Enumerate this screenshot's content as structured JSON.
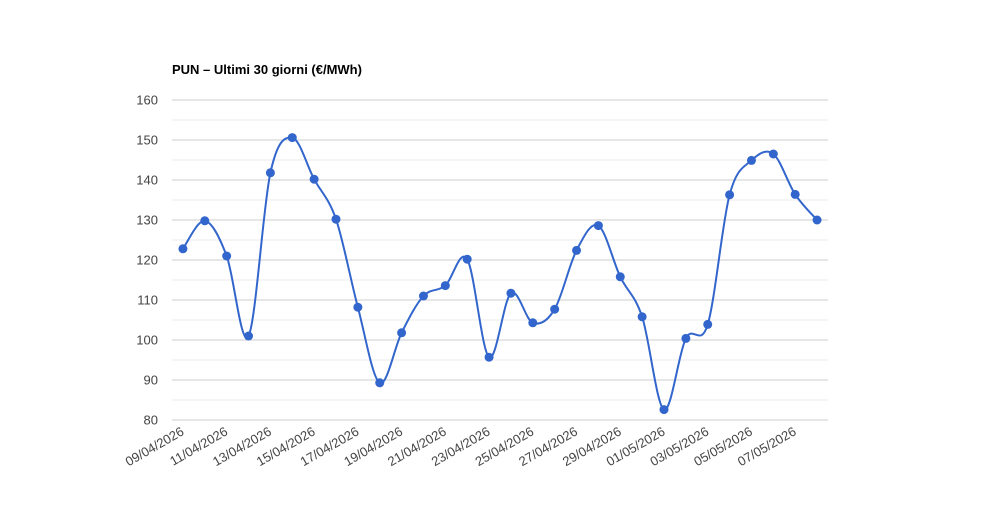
{
  "chart_data": {
    "type": "line",
    "title": "PUN – Ultimi 30 giorni (€/MWh)",
    "categories": [
      "09/04/2026",
      null,
      "11/04/2026",
      null,
      "13/04/2026",
      null,
      "15/04/2026",
      null,
      "17/04/2026",
      null,
      "19/04/2026",
      null,
      "21/04/2026",
      null,
      "23/04/2026",
      null,
      "25/04/2026",
      null,
      "27/04/2026",
      null,
      "29/04/2026",
      null,
      "01/05/2026",
      null,
      "03/05/2026",
      null,
      "05/05/2026",
      null,
      "07/05/2026",
      null
    ],
    "series": [
      {
        "name": "PUN",
        "color": "#3366cc",
        "values": [
          122.8,
          129.8,
          121,
          101,
          141.8,
          150.6,
          140.2,
          130.2,
          108.2,
          89.3,
          101.8,
          111,
          113.6,
          120.2,
          95.7,
          111.7,
          104.3,
          107.7,
          122.4,
          128.6,
          115.8,
          105.8,
          82.6,
          100.4,
          103.9,
          136.3,
          144.9,
          146.5,
          136.4,
          130
        ]
      }
    ],
    "ylim": [
      80,
      160
    ],
    "yticks": [
      80,
      90,
      100,
      110,
      120,
      130,
      140,
      150,
      160
    ],
    "grid": true,
    "minor_grid": true,
    "smooth": true
  }
}
